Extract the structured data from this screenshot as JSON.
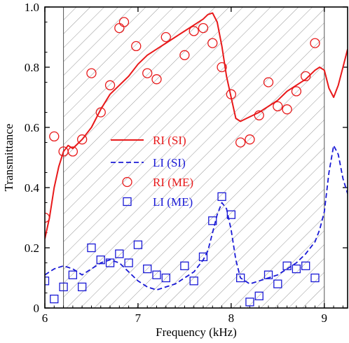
{
  "chart_data": {
    "type": "line",
    "xlabel": "Frequency (kHz)",
    "ylabel": "Transmittance",
    "xlim": [
      6,
      9.25
    ],
    "ylim": [
      0,
      1.0
    ],
    "xticks": [
      6,
      7,
      8,
      9
    ],
    "xtick_labels": [
      "6",
      "7",
      "8",
      "9"
    ],
    "yticks": [
      0,
      0.2,
      0.4,
      0.6,
      0.8,
      1.0
    ],
    "ytick_labels": [
      "0",
      "0.2",
      "0.4",
      "0.6",
      "0.8",
      "1.0"
    ],
    "grid": false,
    "legend_position": "center-left",
    "shaded_band": {
      "x_start": 6.2,
      "x_end": 9.0,
      "pattern": "diagonal-hatch"
    },
    "colors": {
      "red": "#e8191a",
      "blue": "#1a1ad6"
    },
    "series": [
      {
        "name": "RI (SI)",
        "style": "solid-line",
        "color": "#e8191a",
        "x": [
          6.0,
          6.05,
          6.1,
          6.15,
          6.2,
          6.25,
          6.3,
          6.4,
          6.5,
          6.6,
          6.7,
          6.8,
          6.9,
          7.0,
          7.1,
          7.2,
          7.3,
          7.4,
          7.5,
          7.6,
          7.7,
          7.75,
          7.8,
          7.85,
          7.9,
          7.95,
          8.0,
          8.05,
          8.1,
          8.2,
          8.3,
          8.4,
          8.5,
          8.6,
          8.7,
          8.8,
          8.9,
          8.95,
          9.0,
          9.05,
          9.1,
          9.15,
          9.2,
          9.25
        ],
        "y": [
          0.23,
          0.3,
          0.4,
          0.47,
          0.52,
          0.54,
          0.53,
          0.56,
          0.6,
          0.66,
          0.71,
          0.74,
          0.77,
          0.81,
          0.84,
          0.86,
          0.88,
          0.9,
          0.92,
          0.94,
          0.96,
          0.975,
          0.98,
          0.95,
          0.87,
          0.77,
          0.7,
          0.63,
          0.62,
          0.635,
          0.65,
          0.67,
          0.69,
          0.72,
          0.74,
          0.76,
          0.79,
          0.8,
          0.79,
          0.73,
          0.7,
          0.74,
          0.8,
          0.86
        ]
      },
      {
        "name": "LI (SI)",
        "style": "dashed-line",
        "color": "#1a1ad6",
        "x": [
          6.0,
          6.1,
          6.2,
          6.3,
          6.4,
          6.5,
          6.6,
          6.7,
          6.8,
          6.9,
          7.0,
          7.1,
          7.2,
          7.3,
          7.4,
          7.5,
          7.6,
          7.7,
          7.75,
          7.8,
          7.85,
          7.9,
          7.95,
          8.0,
          8.05,
          8.1,
          8.2,
          8.3,
          8.4,
          8.5,
          8.6,
          8.7,
          8.8,
          8.9,
          8.95,
          9.0,
          9.05,
          9.1,
          9.15,
          9.2,
          9.25
        ],
        "y": [
          0.11,
          0.13,
          0.14,
          0.13,
          0.11,
          0.13,
          0.15,
          0.16,
          0.15,
          0.12,
          0.09,
          0.07,
          0.06,
          0.07,
          0.08,
          0.1,
          0.12,
          0.16,
          0.19,
          0.25,
          0.31,
          0.35,
          0.33,
          0.26,
          0.16,
          0.1,
          0.08,
          0.09,
          0.1,
          0.11,
          0.13,
          0.15,
          0.18,
          0.22,
          0.26,
          0.32,
          0.45,
          0.54,
          0.51,
          0.43,
          0.38
        ]
      },
      {
        "name": "RI (ME)",
        "style": "circle-marker",
        "color": "#e8191a",
        "x": [
          6.0,
          6.1,
          6.2,
          6.3,
          6.4,
          6.5,
          6.6,
          6.7,
          6.8,
          6.85,
          6.98,
          7.1,
          7.2,
          7.3,
          7.5,
          7.6,
          7.7,
          7.8,
          7.9,
          8.0,
          8.1,
          8.2,
          8.3,
          8.4,
          8.5,
          8.6,
          8.7,
          8.8,
          8.9
        ],
        "y": [
          0.3,
          0.57,
          0.52,
          0.52,
          0.56,
          0.78,
          0.65,
          0.74,
          0.93,
          0.95,
          0.87,
          0.78,
          0.76,
          0.9,
          0.84,
          0.92,
          0.93,
          0.88,
          0.8,
          0.71,
          0.55,
          0.56,
          0.64,
          0.75,
          0.67,
          0.66,
          0.72,
          0.77,
          0.88
        ]
      },
      {
        "name": "LI (ME)",
        "style": "square-marker",
        "color": "#1a1ad6",
        "x": [
          6.0,
          6.1,
          6.2,
          6.3,
          6.4,
          6.5,
          6.6,
          6.7,
          6.8,
          6.9,
          7.0,
          7.1,
          7.2,
          7.3,
          7.5,
          7.6,
          7.7,
          7.8,
          7.9,
          8.0,
          8.1,
          8.2,
          8.3,
          8.4,
          8.5,
          8.6,
          8.7,
          8.8,
          8.9
        ],
        "y": [
          0.09,
          0.03,
          0.07,
          0.11,
          0.07,
          0.2,
          0.16,
          0.15,
          0.18,
          0.15,
          0.21,
          0.13,
          0.11,
          0.1,
          0.14,
          0.09,
          0.17,
          0.29,
          0.37,
          0.31,
          0.1,
          0.02,
          0.04,
          0.11,
          0.08,
          0.14,
          0.13,
          0.14,
          0.1
        ]
      }
    ]
  }
}
